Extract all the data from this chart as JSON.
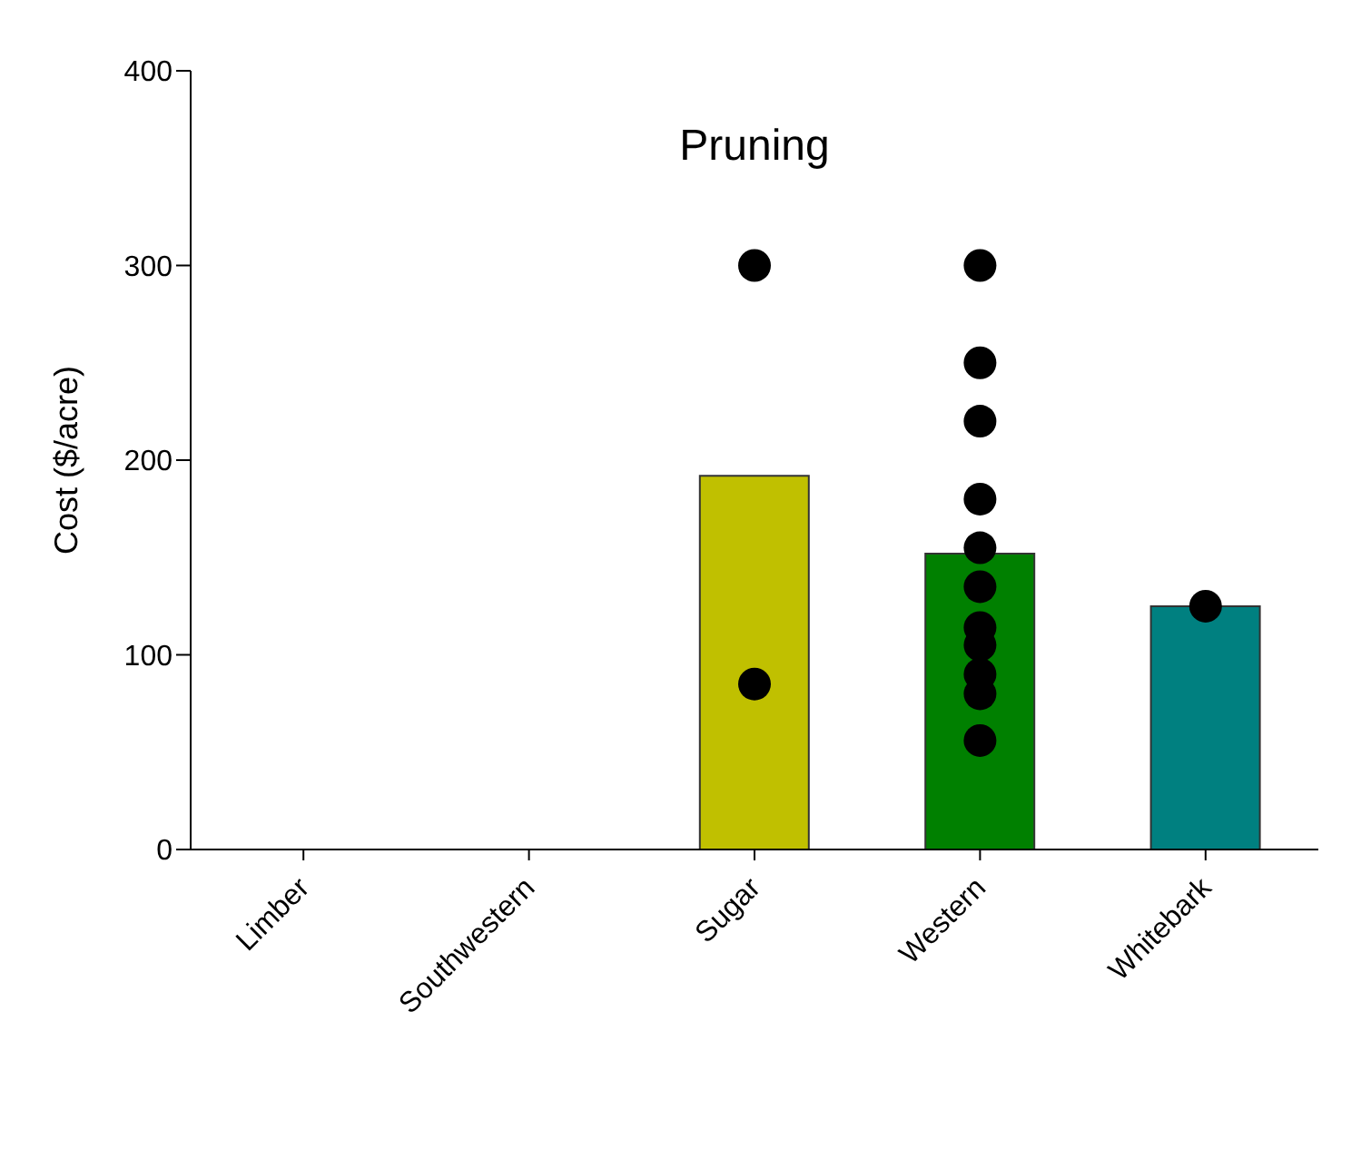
{
  "chart_data": {
    "type": "bar",
    "title": "Pruning",
    "ylabel": "Cost ($/acre)",
    "categories": [
      "Limber",
      "Southwestern",
      "Sugar",
      "Western",
      "Whitebark"
    ],
    "ylim": [
      0,
      400
    ],
    "yticks": [
      0,
      100,
      200,
      300,
      400
    ],
    "grid": false,
    "legend": false,
    "marker": "circle",
    "series": [
      {
        "values": [
          null,
          null,
          192,
          152,
          125
        ],
        "colors": [
          "#c0c000",
          "#c0c000",
          "#c0c000",
          "#008000",
          "#008080"
        ]
      },
      {
        "type": "scatter",
        "color": "#000000",
        "x": [
          "Sugar",
          "Sugar",
          "Western",
          "Western",
          "Western",
          "Western",
          "Western",
          "Western",
          "Western",
          "Western",
          "Western",
          "Western",
          "Western",
          "Whitebark"
        ],
        "values": [
          300,
          85,
          300,
          250,
          220,
          180,
          155,
          135,
          114,
          105,
          90,
          80,
          56,
          125
        ]
      }
    ]
  }
}
